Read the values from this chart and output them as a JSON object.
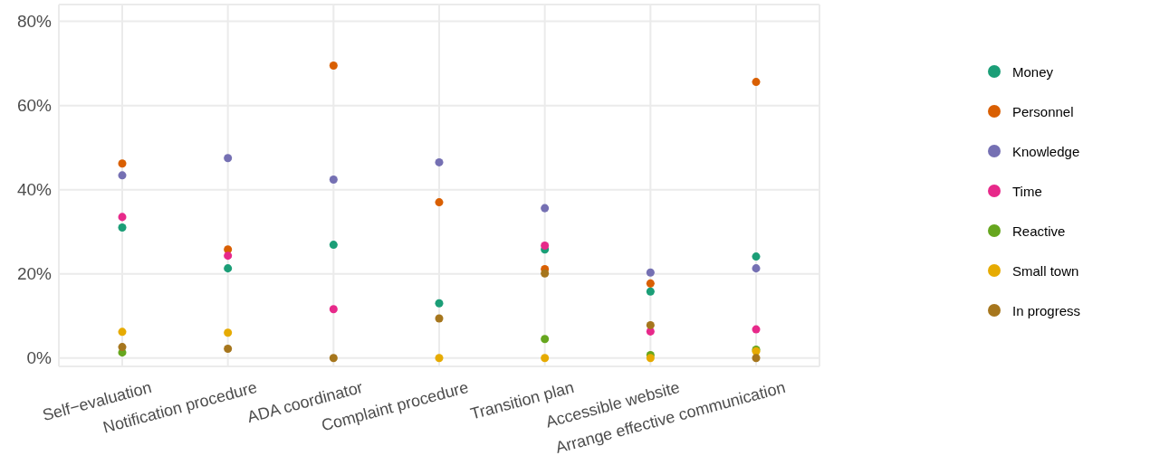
{
  "chart_data": {
    "type": "scatter",
    "categories": [
      "Self−evaluation",
      "Notification procedure",
      "ADA coordinator",
      "Complaint procedure",
      "Transition plan",
      "Accessible website",
      "Arrange effective communication"
    ],
    "series": [
      {
        "name": "Money",
        "color": "#1b9e77",
        "values": [
          31,
          21.3,
          26.9,
          13,
          25.8,
          15.8,
          24.1
        ]
      },
      {
        "name": "Personnel",
        "color": "#d95f02",
        "values": [
          46.2,
          25.8,
          69.5,
          37,
          21.1,
          17.7,
          65.6
        ]
      },
      {
        "name": "Knowledge",
        "color": "#7570b3",
        "values": [
          43.4,
          47.5,
          42.4,
          46.5,
          35.6,
          20.3,
          21.3
        ]
      },
      {
        "name": "Time",
        "color": "#e7298a",
        "values": [
          33.5,
          24.3,
          11.6,
          null,
          26.7,
          6.3,
          6.8
        ]
      },
      {
        "name": "Reactive",
        "color": "#66a61e",
        "values": [
          1.3,
          null,
          null,
          null,
          4.5,
          0.7,
          2
        ]
      },
      {
        "name": "Small town",
        "color": "#e6ab02",
        "values": [
          6.2,
          6,
          null,
          0,
          0,
          0,
          1.6
        ]
      },
      {
        "name": "In progress",
        "color": "#a6761d",
        "values": [
          2.6,
          2.2,
          0,
          9.4,
          20.1,
          7.8,
          0
        ]
      }
    ],
    "ylim": [
      -2,
      84
    ],
    "yticks": [
      {
        "value": 0,
        "label": "0%"
      },
      {
        "value": 20,
        "label": "20%"
      },
      {
        "value": 40,
        "label": "40%"
      },
      {
        "value": 60,
        "label": "60%"
      },
      {
        "value": 80,
        "label": "80%"
      }
    ],
    "grid": true,
    "legend": "right",
    "marker": "circle"
  }
}
